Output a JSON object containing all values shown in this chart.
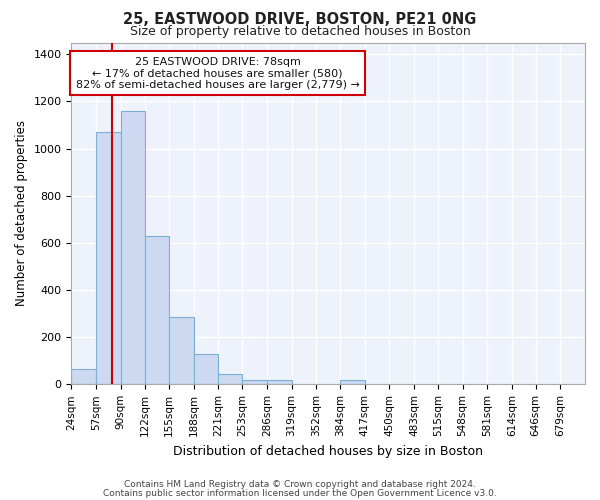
{
  "title1": "25, EASTWOOD DRIVE, BOSTON, PE21 0NG",
  "title2": "Size of property relative to detached houses in Boston",
  "xlabel": "Distribution of detached houses by size in Boston",
  "ylabel": "Number of detached properties",
  "bin_edges": [
    24,
    57,
    90,
    122,
    155,
    188,
    221,
    253,
    286,
    319,
    352,
    384,
    417,
    450,
    483,
    515,
    548,
    581,
    614,
    646,
    679,
    712
  ],
  "bar_heights": [
    65,
    1070,
    1160,
    630,
    285,
    130,
    45,
    20,
    20,
    0,
    0,
    20,
    0,
    0,
    0,
    0,
    0,
    0,
    0,
    0,
    0
  ],
  "bar_color": "#ccd9f0",
  "bar_edge_color": "#7bafd4",
  "red_line_x": 78,
  "ylim": [
    0,
    1450
  ],
  "yticks": [
    0,
    200,
    400,
    600,
    800,
    1000,
    1200,
    1400
  ],
  "annotation_text": "25 EASTWOOD DRIVE: 78sqm\n← 17% of detached houses are smaller (580)\n82% of semi-detached houses are larger (2,779) →",
  "annotation_box_color": "#ffffff",
  "annotation_box_edge": "#cc0000",
  "footer1": "Contains HM Land Registry data © Crown copyright and database right 2024.",
  "footer2": "Contains public sector information licensed under the Open Government Licence v3.0.",
  "background_color": "#eef2fb",
  "grid_color": "#ffffff",
  "tick_labels": [
    "24sqm",
    "57sqm",
    "90sqm",
    "122sqm",
    "155sqm",
    "188sqm",
    "221sqm",
    "253sqm",
    "286sqm",
    "319sqm",
    "352sqm",
    "384sqm",
    "417sqm",
    "450sqm",
    "483sqm",
    "515sqm",
    "548sqm",
    "581sqm",
    "614sqm",
    "646sqm",
    "679sqm"
  ]
}
